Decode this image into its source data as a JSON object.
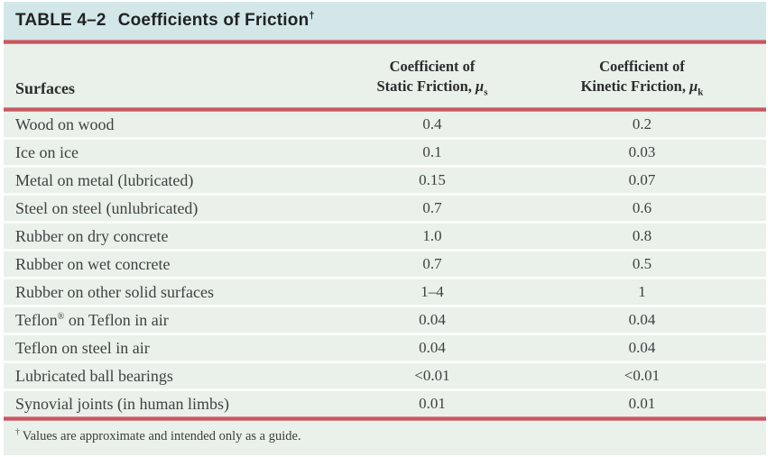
{
  "title": {
    "table_label": "TABLE 4–2",
    "title_text": "Coefficients of Friction",
    "dagger": "†"
  },
  "columns": {
    "surfaces": "Surfaces",
    "static": {
      "line1": "Coefficient of",
      "line2": "Static Friction, ",
      "mu": "μ",
      "sub": "s"
    },
    "kinetic": {
      "line1": "Coefficient of",
      "line2": "Kinetic Friction, ",
      "mu": "μ",
      "sub": "k"
    }
  },
  "rows": [
    {
      "pre": "Wood on wood",
      "sup": "",
      "post": "",
      "static": "0.4",
      "kinetic": "0.2"
    },
    {
      "pre": "Ice on ice",
      "sup": "",
      "post": "",
      "static": "0.1",
      "kinetic": "0.03"
    },
    {
      "pre": "Metal on metal (lubricated)",
      "sup": "",
      "post": "",
      "static": "0.15",
      "kinetic": "0.07"
    },
    {
      "pre": "Steel on steel (unlubricated)",
      "sup": "",
      "post": "",
      "static": "0.7",
      "kinetic": "0.6"
    },
    {
      "pre": "Rubber on dry concrete",
      "sup": "",
      "post": "",
      "static": "1.0",
      "kinetic": "0.8"
    },
    {
      "pre": "Rubber on wet concrete",
      "sup": "",
      "post": "",
      "static": "0.7",
      "kinetic": "0.5"
    },
    {
      "pre": "Rubber on other solid surfaces",
      "sup": "",
      "post": "",
      "static": "1–4",
      "kinetic": "1"
    },
    {
      "pre": "Teflon",
      "sup": "®",
      "post": " on Teflon in air",
      "static": "0.04",
      "kinetic": "0.04"
    },
    {
      "pre": "Teflon on steel in air",
      "sup": "",
      "post": "",
      "static": "0.04",
      "kinetic": "0.04"
    },
    {
      "pre": "Lubricated ball bearings",
      "sup": "",
      "post": "",
      "static": "<0.01",
      "kinetic": "<0.01"
    },
    {
      "pre": "Synovial joints (in human limbs)",
      "sup": "",
      "post": "",
      "static": "0.01",
      "kinetic": "0.01"
    }
  ],
  "footnote": {
    "dagger": "†",
    "text": "Values are approximate and intended only as a guide."
  },
  "colors": {
    "title_bar_blue": "#d3e7e9",
    "body_green": "#e9f1ea",
    "rule_red": "#c5535d",
    "separator_white": "#fafcfa"
  },
  "chart_data": {
    "type": "table",
    "title": "TABLE 4–2 Coefficients of Friction",
    "columns": [
      "Surfaces",
      "Coefficient of Static Friction, μs",
      "Coefficient of Kinetic Friction, μk"
    ],
    "rows": [
      [
        "Wood on wood",
        "0.4",
        "0.2"
      ],
      [
        "Ice on ice",
        "0.1",
        "0.03"
      ],
      [
        "Metal on metal (lubricated)",
        "0.15",
        "0.07"
      ],
      [
        "Steel on steel (unlubricated)",
        "0.7",
        "0.6"
      ],
      [
        "Rubber on dry concrete",
        "1.0",
        "0.8"
      ],
      [
        "Rubber on wet concrete",
        "0.7",
        "0.5"
      ],
      [
        "Rubber on other solid surfaces",
        "1–4",
        "1"
      ],
      [
        "Teflon® on Teflon in air",
        "0.04",
        "0.04"
      ],
      [
        "Teflon on steel in air",
        "0.04",
        "0.04"
      ],
      [
        "Lubricated ball bearings",
        "<0.01",
        "<0.01"
      ],
      [
        "Synovial joints (in human limbs)",
        "0.01",
        "0.01"
      ]
    ],
    "footnote": "† Values are approximate and intended only as a guide."
  }
}
